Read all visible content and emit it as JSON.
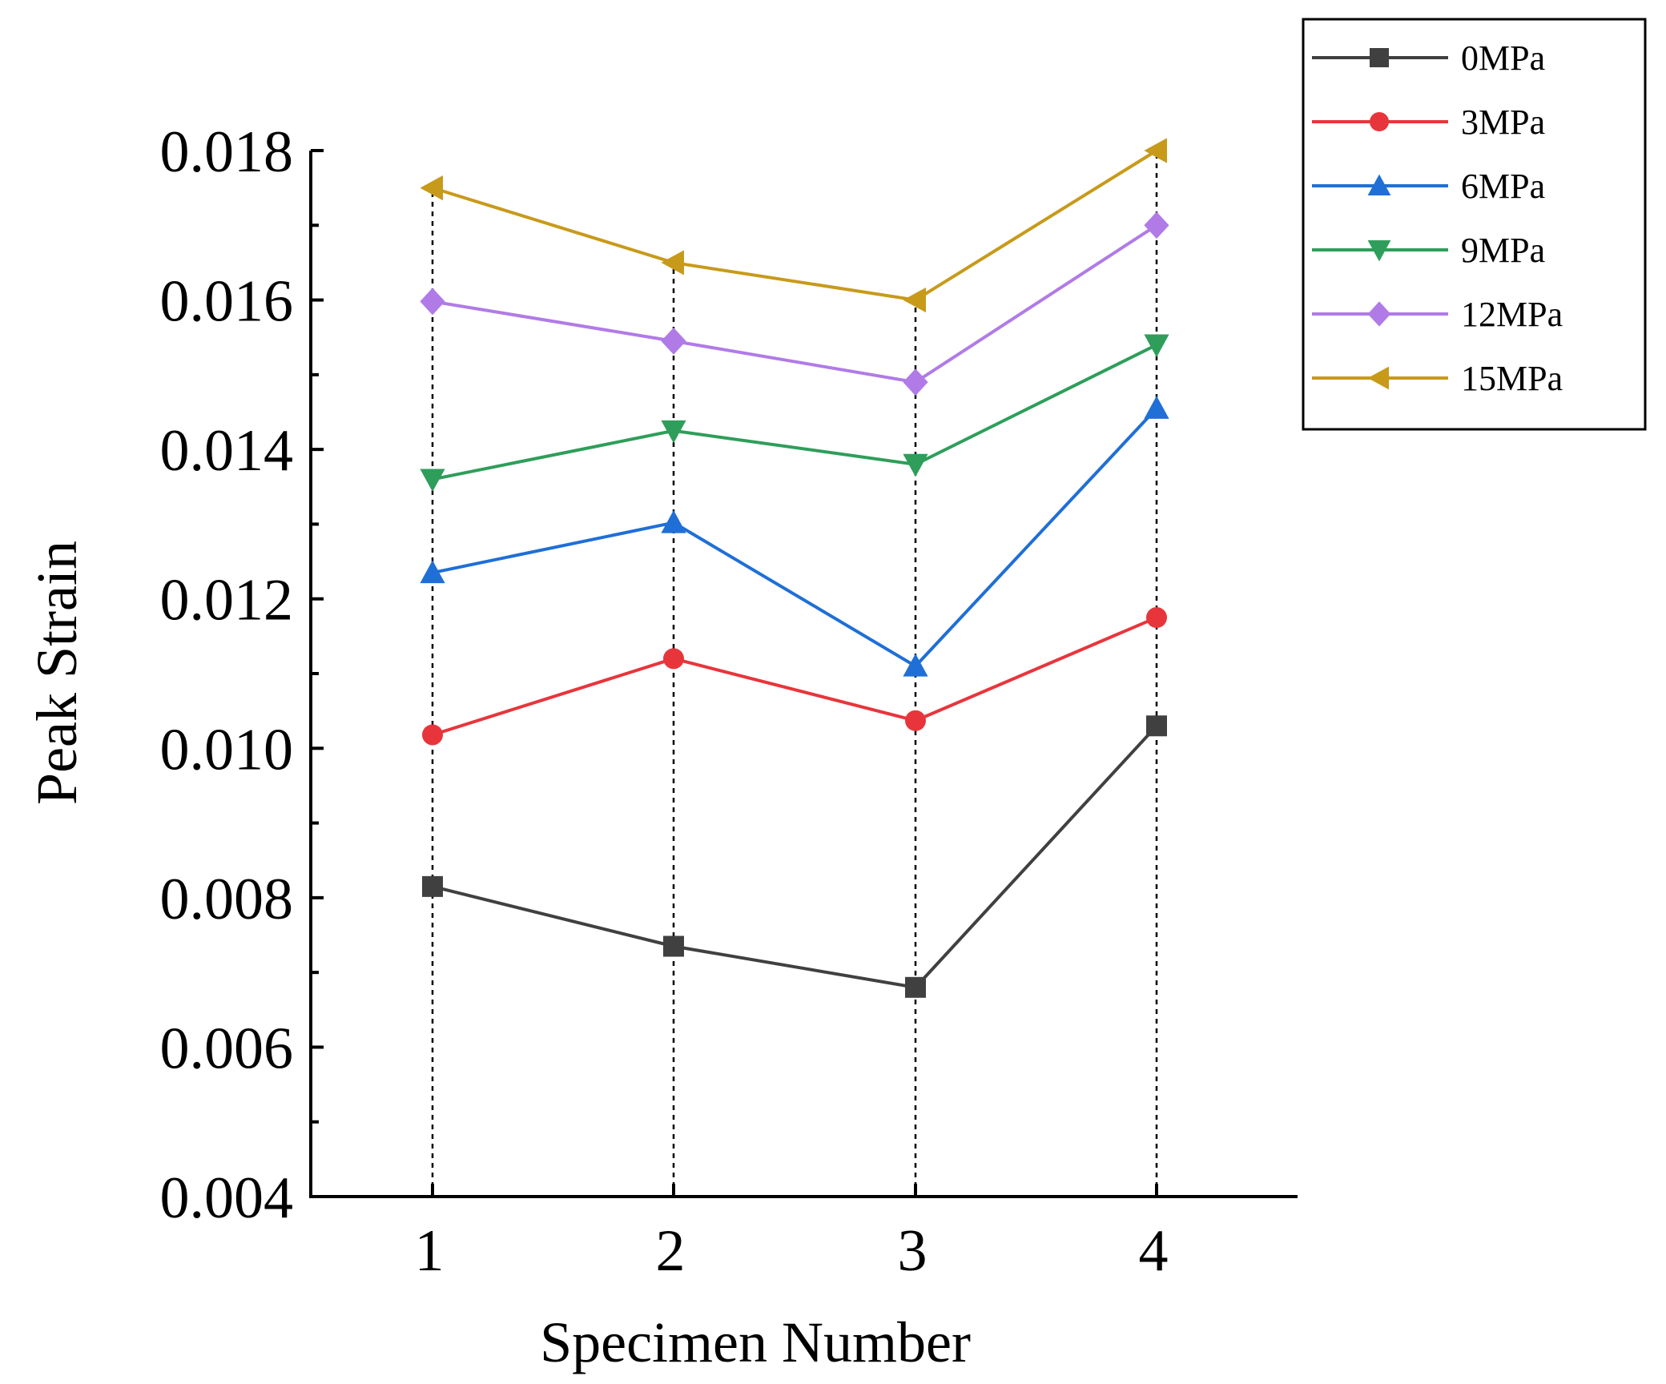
{
  "chart_data": {
    "type": "line",
    "title": "",
    "xlabel": "Specimen Number",
    "ylabel": "Peak Strain",
    "categories": [
      "1",
      "2",
      "3",
      "4"
    ],
    "x": [
      1,
      2,
      3,
      4
    ],
    "xlim": [
      0.5,
      4.6
    ],
    "ylim": [
      0.004,
      0.018
    ],
    "yticks": [
      0.004,
      0.006,
      0.008,
      0.01,
      0.012,
      0.014,
      0.016,
      0.018
    ],
    "ytick_labels": [
      "0.004",
      "0.006",
      "0.008",
      "0.010",
      "0.012",
      "0.014",
      "0.016",
      "0.018"
    ],
    "grid": false,
    "legend_position": "top-right outside",
    "series": [
      {
        "name": "0MPa",
        "color": "#404040",
        "marker": "square",
        "values": [
          0.00815,
          0.00735,
          0.0068,
          0.0103
        ]
      },
      {
        "name": "3MPa",
        "color": "#e8353b",
        "marker": "circle",
        "values": [
          0.01018,
          0.0112,
          0.01037,
          0.01175
        ]
      },
      {
        "name": "6MPa",
        "color": "#1f6fd6",
        "marker": "triangle-up",
        "values": [
          0.01235,
          0.01302,
          0.0111,
          0.01455
        ]
      },
      {
        "name": "9MPa",
        "color": "#2e9e5a",
        "marker": "triangle-down",
        "values": [
          0.0136,
          0.01425,
          0.0138,
          0.0154
        ]
      },
      {
        "name": "12MPa",
        "color": "#b07be6",
        "marker": "diamond",
        "values": [
          0.01598,
          0.01545,
          0.0149,
          0.017
        ]
      },
      {
        "name": "15MPa",
        "color": "#c89a1a",
        "marker": "triangle-left",
        "values": [
          0.0175,
          0.0165,
          0.016,
          0.018
        ]
      }
    ]
  }
}
